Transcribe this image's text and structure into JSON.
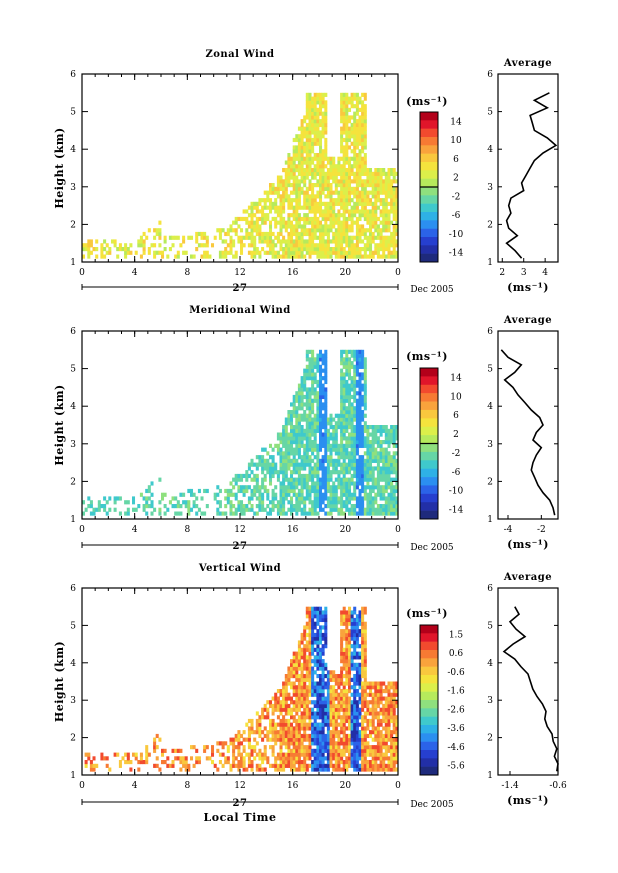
{
  "chart_data": [
    {
      "type": "heatmap",
      "panel": "zonal",
      "title": "Zonal Wind",
      "ylabel": "Height (km)",
      "xticks": [
        "0",
        "4",
        "8",
        "12",
        "16",
        "20",
        "0"
      ],
      "yticks": [
        "1",
        "2",
        "3",
        "4",
        "5",
        "6"
      ],
      "xlim": [
        0,
        24
      ],
      "ylim": [
        1,
        6
      ],
      "date_axis": {
        "day": "27",
        "month_year": "Dec 2005"
      },
      "colorbar": {
        "unit": "(ms⁻¹)",
        "labels": [
          "14",
          "10",
          "6",
          "2",
          "-2",
          "-6",
          "-10",
          "-14"
        ],
        "min": -16,
        "max": 16,
        "zero_line": 0
      },
      "value_range_observed": [
        0,
        6
      ],
      "data_extent": {
        "time_hours": [
          0,
          24
        ],
        "height_km": [
          1.1,
          5.5
        ]
      },
      "average_profile": {
        "title": "Average",
        "xlabel": "(ms⁻¹)",
        "xticks": [
          "2",
          "3",
          "4"
        ],
        "xlim": [
          1.8,
          4.6
        ],
        "yticks": [
          "1",
          "2",
          "3",
          "4",
          "5",
          "6"
        ],
        "height": [
          1.1,
          1.3,
          1.5,
          1.7,
          1.9,
          2.1,
          2.3,
          2.5,
          2.7,
          2.9,
          3.1,
          3.3,
          3.5,
          3.7,
          3.9,
          4.1,
          4.3,
          4.5,
          4.7,
          4.9,
          5.1,
          5.3,
          5.5
        ],
        "value": [
          2.9,
          2.6,
          2.2,
          2.7,
          2.3,
          2.2,
          2.4,
          2.3,
          2.4,
          3.0,
          2.9,
          3.1,
          3.3,
          3.5,
          3.9,
          4.5,
          4.1,
          3.5,
          3.4,
          3.3,
          4.1,
          3.5,
          4.2
        ]
      }
    },
    {
      "type": "heatmap",
      "panel": "meridional",
      "title": "Meridional Wind",
      "ylabel": "Height (km)",
      "xticks": [
        "0",
        "4",
        "8",
        "12",
        "16",
        "20",
        "0"
      ],
      "yticks": [
        "1",
        "2",
        "3",
        "4",
        "5",
        "6"
      ],
      "xlim": [
        0,
        24
      ],
      "ylim": [
        1,
        6
      ],
      "date_axis": {
        "day": "27",
        "month_year": "Dec 2005"
      },
      "colorbar": {
        "unit": "(ms⁻¹)",
        "labels": [
          "14",
          "10",
          "6",
          "2",
          "-2",
          "-6",
          "-10",
          "-14"
        ],
        "min": -16,
        "max": 16,
        "zero_line": 0
      },
      "value_range_observed": [
        -10,
        0
      ],
      "data_extent": {
        "time_hours": [
          0,
          24
        ],
        "height_km": [
          1.1,
          5.5
        ]
      },
      "average_profile": {
        "title": "Average",
        "xlabel": "(ms⁻¹)",
        "xticks": [
          "-4",
          "-2"
        ],
        "xlim": [
          -4.6,
          -1.0
        ],
        "yticks": [
          "1",
          "2",
          "3",
          "4",
          "5",
          "6"
        ],
        "height": [
          1.1,
          1.3,
          1.5,
          1.7,
          1.9,
          2.1,
          2.3,
          2.5,
          2.7,
          2.9,
          3.1,
          3.3,
          3.5,
          3.7,
          3.9,
          4.1,
          4.3,
          4.5,
          4.7,
          4.9,
          5.1,
          5.3,
          5.5
        ],
        "value": [
          -1.2,
          -1.3,
          -1.5,
          -1.9,
          -2.2,
          -2.4,
          -2.6,
          -2.5,
          -2.3,
          -2.0,
          -2.5,
          -2.3,
          -1.9,
          -2.1,
          -2.6,
          -3.0,
          -3.4,
          -3.7,
          -4.2,
          -3.6,
          -3.2,
          -4.0,
          -4.4
        ]
      }
    },
    {
      "type": "heatmap",
      "panel": "vertical",
      "title": "Vertical Wind",
      "ylabel": "Height (km)",
      "xlabel": "Local Time",
      "xticks": [
        "0",
        "4",
        "8",
        "12",
        "16",
        "20",
        "0"
      ],
      "yticks": [
        "1",
        "2",
        "3",
        "4",
        "5",
        "6"
      ],
      "xlim": [
        0,
        24
      ],
      "ylim": [
        1,
        6
      ],
      "date_axis": {
        "day": "27",
        "month_year": "Dec 2005"
      },
      "colorbar": {
        "unit": "(ms⁻¹)",
        "labels": [
          "1.5",
          "0.6",
          "-0.6",
          "-1.6",
          "-2.6",
          "-3.6",
          "-4.6",
          "-5.6"
        ],
        "min": -6.0,
        "max": 2.0
      },
      "value_range_observed": [
        -6.0,
        1.0
      ],
      "data_extent": {
        "time_hours": [
          0,
          24
        ],
        "height_km": [
          1.1,
          5.5
        ]
      },
      "average_profile": {
        "title": "Average",
        "xlabel": "(ms⁻¹)",
        "xticks": [
          "-1.4",
          "-0.6"
        ],
        "xlim": [
          -1.6,
          -0.6
        ],
        "yticks": [
          "1",
          "2",
          "3",
          "4",
          "5",
          "6"
        ],
        "height": [
          1.1,
          1.3,
          1.5,
          1.7,
          1.9,
          2.1,
          2.3,
          2.5,
          2.7,
          2.9,
          3.1,
          3.3,
          3.5,
          3.7,
          3.9,
          4.1,
          4.3,
          4.5,
          4.7,
          4.9,
          5.1,
          5.3,
          5.5
        ],
        "value": [
          -0.62,
          -0.6,
          -0.66,
          -0.62,
          -0.68,
          -0.7,
          -0.78,
          -0.82,
          -0.8,
          -0.86,
          -0.95,
          -1.02,
          -1.06,
          -1.1,
          -1.22,
          -1.32,
          -1.5,
          -1.35,
          -1.15,
          -1.3,
          -1.4,
          -1.25,
          -1.32
        ]
      }
    }
  ]
}
